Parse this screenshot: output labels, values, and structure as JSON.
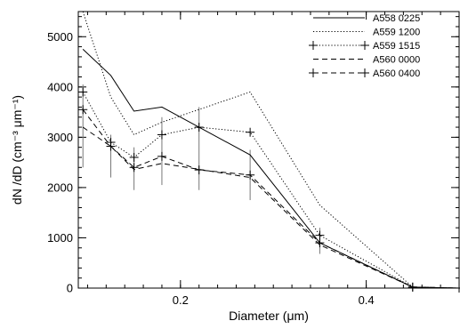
{
  "chart_data": {
    "type": "line",
    "title": "",
    "xlabel": "Diameter (μm)",
    "ylabel": "dN /dD (cm⁻³ μm⁻¹)",
    "xlim": [
      0.09,
      0.5
    ],
    "ylim": [
      0,
      5500
    ],
    "grid": false,
    "legend_position": "top-right",
    "x_ticks": [
      0.2,
      0.4
    ],
    "x_tick_labels": [
      "0.2",
      "0.4"
    ],
    "y_ticks": [
      0,
      1000,
      2000,
      3000,
      4000,
      5000
    ],
    "y_tick_labels": [
      "0",
      "1000",
      "2000",
      "3000",
      "4000",
      "5000"
    ],
    "series": [
      {
        "name": "A558 0225",
        "style": "solid",
        "marker": "none",
        "x": [
          0.095,
          0.125,
          0.15,
          0.18,
          0.275,
          0.35,
          0.45,
          0.5
        ],
        "y": [
          4750,
          4230,
          3520,
          3600,
          2650,
          900,
          20,
          0
        ]
      },
      {
        "name": "A559 1200",
        "style": "dotted",
        "marker": "none",
        "x": [
          0.095,
          0.125,
          0.15,
          0.18,
          0.275,
          0.35,
          0.45,
          0.5
        ],
        "y": [
          5500,
          3800,
          3050,
          3300,
          3900,
          1650,
          20,
          0
        ]
      },
      {
        "name": "A559 1515",
        "style": "dotted",
        "marker": "plus",
        "x": [
          0.095,
          0.125,
          0.15,
          0.18,
          0.22,
          0.275,
          0.35,
          0.45,
          0.5
        ],
        "y": [
          3900,
          2900,
          2600,
          3050,
          3200,
          3100,
          1050,
          20,
          0
        ]
      },
      {
        "name": "A560 0000",
        "style": "dashed",
        "marker": "none",
        "x": [
          0.095,
          0.125,
          0.15,
          0.18,
          0.275,
          0.35,
          0.45,
          0.5
        ],
        "y": [
          3200,
          2820,
          2360,
          2480,
          2200,
          860,
          20,
          0
        ]
      },
      {
        "name": "A560 0400",
        "style": "dashed",
        "marker": "plus",
        "x": [
          0.095,
          0.125,
          0.15,
          0.18,
          0.22,
          0.275,
          0.35,
          0.45,
          0.5
        ],
        "y": [
          3550,
          2820,
          2400,
          2620,
          2350,
          2250,
          900,
          20,
          0
        ]
      }
    ],
    "error_bars": {
      "x": [
        0.095,
        0.125,
        0.15,
        0.18,
        0.22,
        0.275,
        0.35
      ],
      "low": [
        2400,
        2200,
        1950,
        2050,
        1950,
        1750,
        680
      ],
      "high": [
        4050,
        3050,
        2800,
        3400,
        3600,
        2750,
        1200
      ]
    }
  }
}
